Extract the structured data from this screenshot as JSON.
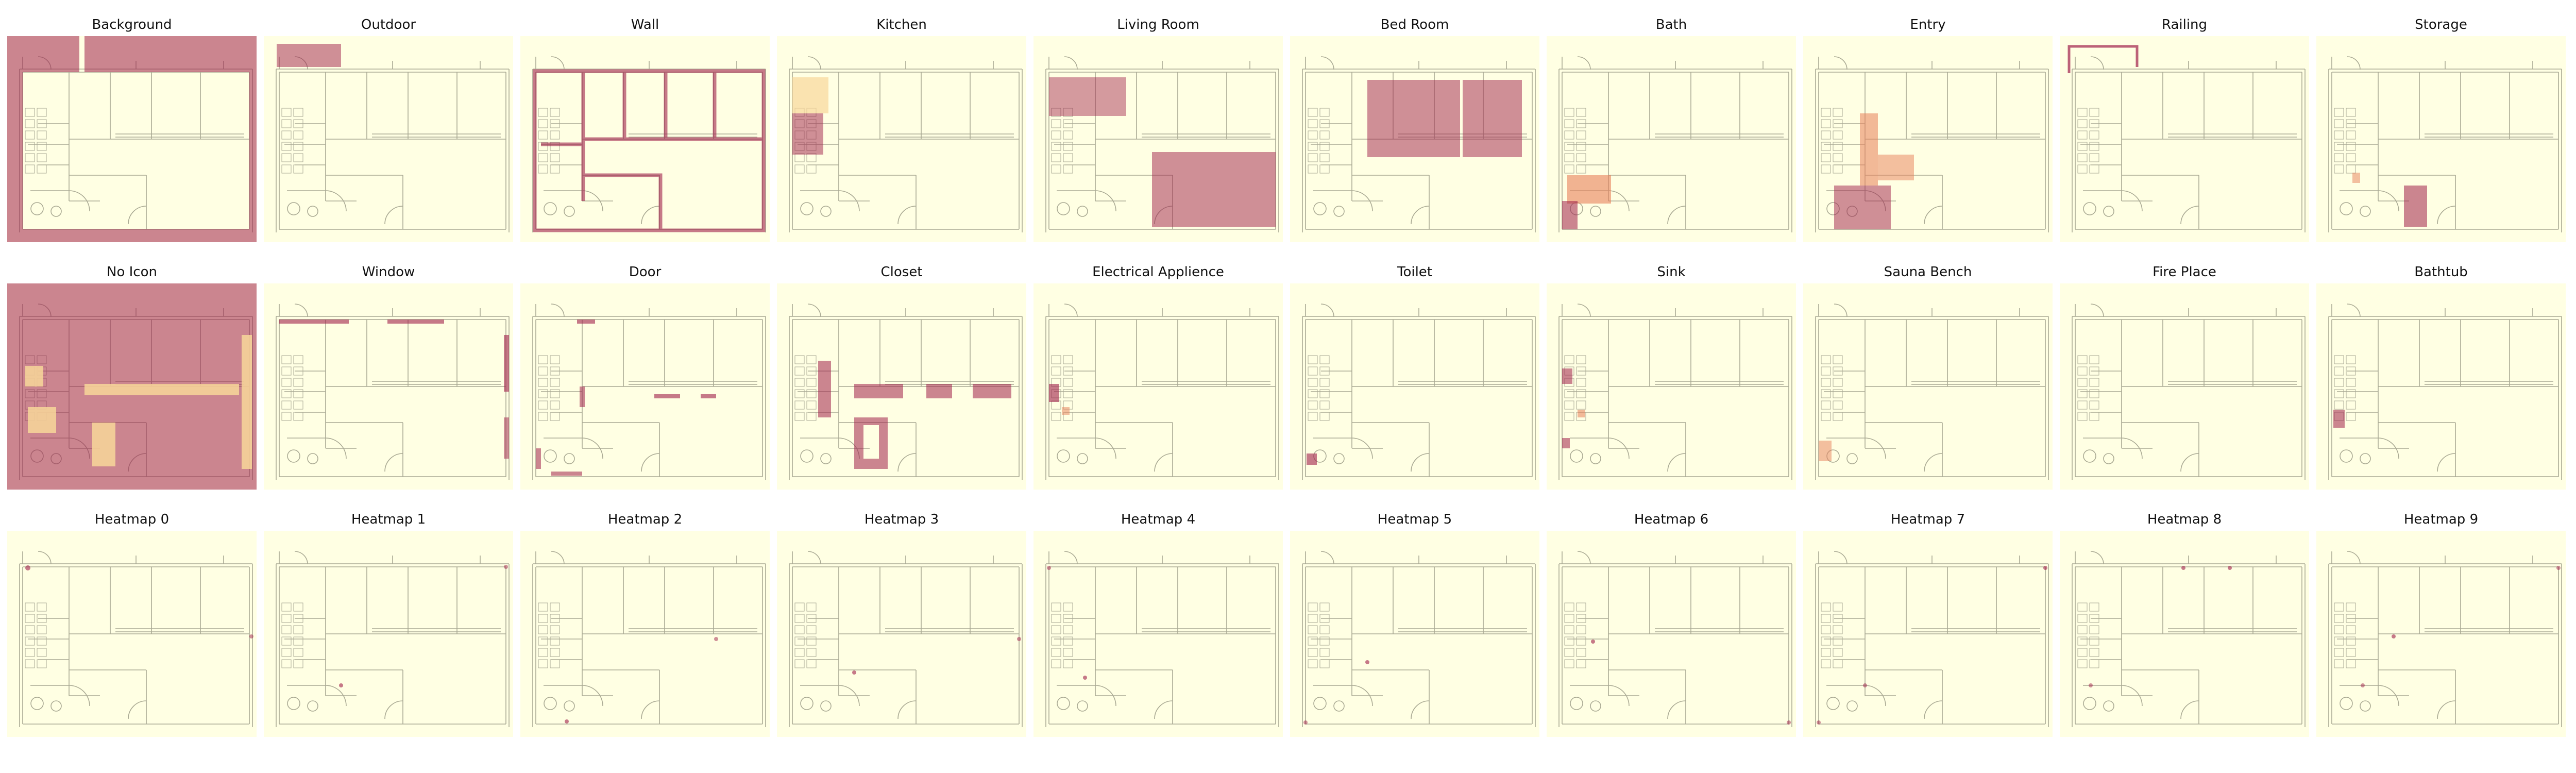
{
  "figure": {
    "rows": [
      {
        "panels": [
          {
            "title": "Background",
            "overlay": "background"
          },
          {
            "title": "Outdoor",
            "overlay": "outdoor"
          },
          {
            "title": "Wall",
            "overlay": "wall"
          },
          {
            "title": "Kitchen",
            "overlay": "kitchen"
          },
          {
            "title": "Living Room",
            "overlay": "living-room"
          },
          {
            "title": "Bed Room",
            "overlay": "bed-room"
          },
          {
            "title": "Bath",
            "overlay": "bath"
          },
          {
            "title": "Entry",
            "overlay": "entry"
          },
          {
            "title": "Railing",
            "overlay": "railing"
          },
          {
            "title": "Storage",
            "overlay": "storage"
          }
        ]
      },
      {
        "panels": [
          {
            "title": "No Icon",
            "overlay": "no-icon"
          },
          {
            "title": "Window",
            "overlay": "window"
          },
          {
            "title": "Door",
            "overlay": "door"
          },
          {
            "title": "Closet",
            "overlay": "closet"
          },
          {
            "title": "Electrical Applience",
            "overlay": "electrical"
          },
          {
            "title": "Toilet",
            "overlay": "toilet"
          },
          {
            "title": "Sink",
            "overlay": "sink"
          },
          {
            "title": "Sauna Bench",
            "overlay": "sauna"
          },
          {
            "title": "Fire Place",
            "overlay": "fireplace"
          },
          {
            "title": "Bathtub",
            "overlay": "bathtub"
          }
        ]
      },
      {
        "panels": [
          {
            "title": "Heatmap 0",
            "overlay": "hm0"
          },
          {
            "title": "Heatmap 1",
            "overlay": "hm1"
          },
          {
            "title": "Heatmap 2",
            "overlay": "hm2"
          },
          {
            "title": "Heatmap 3",
            "overlay": "hm3"
          },
          {
            "title": "Heatmap 4",
            "overlay": "hm4"
          },
          {
            "title": "Heatmap 5",
            "overlay": "hm5"
          },
          {
            "title": "Heatmap 6",
            "overlay": "hm6"
          },
          {
            "title": "Heatmap 7",
            "overlay": "hm7"
          },
          {
            "title": "Heatmap 8",
            "overlay": "hm8"
          },
          {
            "title": "Heatmap 9",
            "overlay": "hm9"
          }
        ]
      }
    ],
    "colors": {
      "background_tint": "#ffffe3",
      "floorplan_line": "#8e8e7a",
      "heat_high": "#a0204a",
      "heat_mid": "#e8805a",
      "heat_low": "#f8d79a"
    }
  }
}
